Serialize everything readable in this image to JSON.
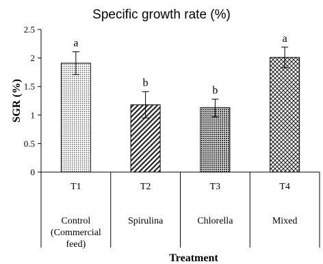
{
  "chart_data": {
    "type": "bar",
    "title": "Specific growth rate (%)",
    "xlabel": "Treatment",
    "ylabel": "SGR (%)",
    "ylim": [
      0,
      2.5
    ],
    "yticks": [
      "0",
      "0.5",
      "1",
      "1.5",
      "2",
      "2.5"
    ],
    "categories": [
      "T1",
      "T2",
      "T3",
      "T4"
    ],
    "descriptions": [
      [
        "Control",
        "(Commercial",
        "feed)"
      ],
      [
        "Spirulina"
      ],
      [
        "Chlorella"
      ],
      [
        "Mixed"
      ]
    ],
    "values": [
      1.91,
      1.18,
      1.13,
      2.01
    ],
    "error_low": [
      1.71,
      0.95,
      0.97,
      1.83
    ],
    "error_high": [
      2.11,
      1.41,
      1.28,
      2.19
    ],
    "significance": [
      "a",
      "b",
      "b",
      "a"
    ],
    "fill_patterns": [
      "dots-fine",
      "diagonal-hatch",
      "dots-dense",
      "crosshatch"
    ],
    "grid": false,
    "legend": "none"
  }
}
